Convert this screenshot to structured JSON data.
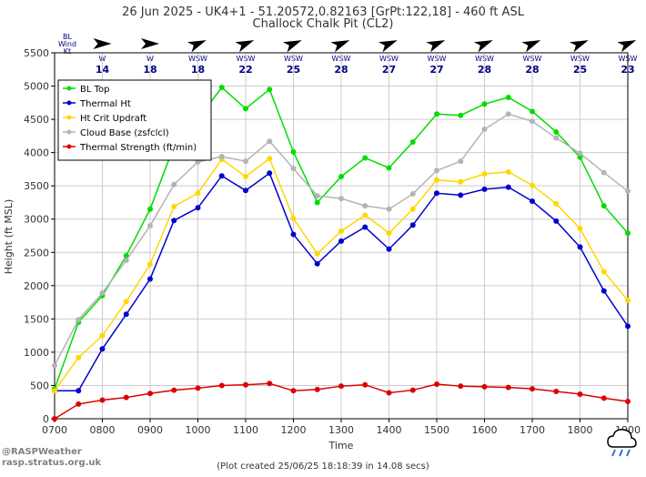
{
  "header": {
    "title": "26 Jun 2025 - UK4+1 - 51.20572,0.82163 [GrPt:122,18]  - 460 ft ASL",
    "subtitle": "Challock Chalk Pit (CL2)"
  },
  "wind": {
    "label_lines": [
      "BL",
      "Wind",
      "Kt"
    ],
    "arrow_color": "#000000",
    "text_color": "#000080",
    "entries": [
      {
        "time": "0800",
        "dir": "W",
        "deg": 270,
        "speed": "14"
      },
      {
        "time": "0900",
        "dir": "W",
        "deg": 270,
        "speed": "18"
      },
      {
        "time": "1000",
        "dir": "WSW",
        "deg": 247.5,
        "speed": "18"
      },
      {
        "time": "1100",
        "dir": "WSW",
        "deg": 247.5,
        "speed": "22"
      },
      {
        "time": "1200",
        "dir": "WSW",
        "deg": 247.5,
        "speed": "25"
      },
      {
        "time": "1300",
        "dir": "WSW",
        "deg": 247.5,
        "speed": "28"
      },
      {
        "time": "1400",
        "dir": "WSW",
        "deg": 247.5,
        "speed": "27"
      },
      {
        "time": "1500",
        "dir": "WSW",
        "deg": 247.5,
        "speed": "27"
      },
      {
        "time": "1600",
        "dir": "WSW",
        "deg": 247.5,
        "speed": "28"
      },
      {
        "time": "1700",
        "dir": "WSW",
        "deg": 247.5,
        "speed": "28"
      },
      {
        "time": "1800",
        "dir": "WSW",
        "deg": 247.5,
        "speed": "25"
      },
      {
        "time": "1900",
        "dir": "WSW",
        "deg": 247.5,
        "speed": "23"
      }
    ]
  },
  "chart_data": {
    "type": "line",
    "xlabel": "Time",
    "ylabel": "Height (ft MSL)",
    "xlim": [
      "0700",
      "1900"
    ],
    "ylim": [
      0,
      5500
    ],
    "grid": true,
    "x_ticks": [
      "0700",
      "0800",
      "0900",
      "1000",
      "1100",
      "1200",
      "1300",
      "1400",
      "1500",
      "1600",
      "1700",
      "1800",
      "1900"
    ],
    "y_ticks": [
      0,
      500,
      1000,
      1500,
      2000,
      2500,
      3000,
      3500,
      4000,
      4500,
      5000,
      5500
    ],
    "legend_position": "top-left",
    "x": [
      "0700",
      "0730",
      "0800",
      "0830",
      "0900",
      "0930",
      "1000",
      "1030",
      "1100",
      "1130",
      "1200",
      "1230",
      "1300",
      "1330",
      "1400",
      "1430",
      "1500",
      "1530",
      "1600",
      "1630",
      "1700",
      "1730",
      "1800",
      "1830",
      "1900"
    ],
    "series": [
      {
        "name": "BL Top",
        "color": "#00dd00",
        "values": [
          450,
          1450,
          1850,
          2450,
          3150,
          4100,
          4500,
          4980,
          4660,
          4950,
          4010,
          3250,
          3640,
          3920,
          3770,
          4160,
          4580,
          4560,
          4730,
          4830,
          4620,
          4310,
          3930,
          3200,
          2790
        ]
      },
      {
        "name": "Thermal Ht",
        "color": "#0000cc",
        "values": [
          420,
          420,
          1050,
          1570,
          2100,
          2980,
          3170,
          3650,
          3430,
          3690,
          2770,
          2330,
          2670,
          2880,
          2550,
          2910,
          3390,
          3360,
          3450,
          3480,
          3270,
          2970,
          2580,
          1920,
          1390
        ]
      },
      {
        "name": "Ht Crit Updraft",
        "color": "#ffd700",
        "values": [
          420,
          920,
          1250,
          1760,
          2320,
          3190,
          3390,
          3900,
          3640,
          3910,
          3010,
          2480,
          2820,
          3060,
          2790,
          3150,
          3590,
          3560,
          3680,
          3710,
          3510,
          3230,
          2860,
          2210,
          1780
        ]
      },
      {
        "name": "Cloud Base (zsfclcl)",
        "color": "#b4b4b4",
        "values": [
          800,
          1490,
          1890,
          2380,
          2900,
          3520,
          3860,
          3940,
          3870,
          4170,
          3760,
          3350,
          3310,
          3200,
          3150,
          3380,
          3730,
          3870,
          4350,
          4580,
          4470,
          4220,
          3990,
          3700,
          3420
        ]
      },
      {
        "name": "Thermal Strength (ft/min)",
        "color": "#dd0000",
        "values": [
          0,
          220,
          280,
          320,
          380,
          430,
          460,
          500,
          510,
          530,
          420,
          440,
          490,
          510,
          390,
          430,
          520,
          490,
          480,
          470,
          450,
          410,
          370,
          310,
          260
        ]
      }
    ]
  },
  "footer": {
    "credit_line1": "@RASPWeather",
    "credit_line2": "rasp.stratus.org.uk",
    "created": "(Plot created 25/06/25 18:18:39 in 14.08 secs)"
  }
}
